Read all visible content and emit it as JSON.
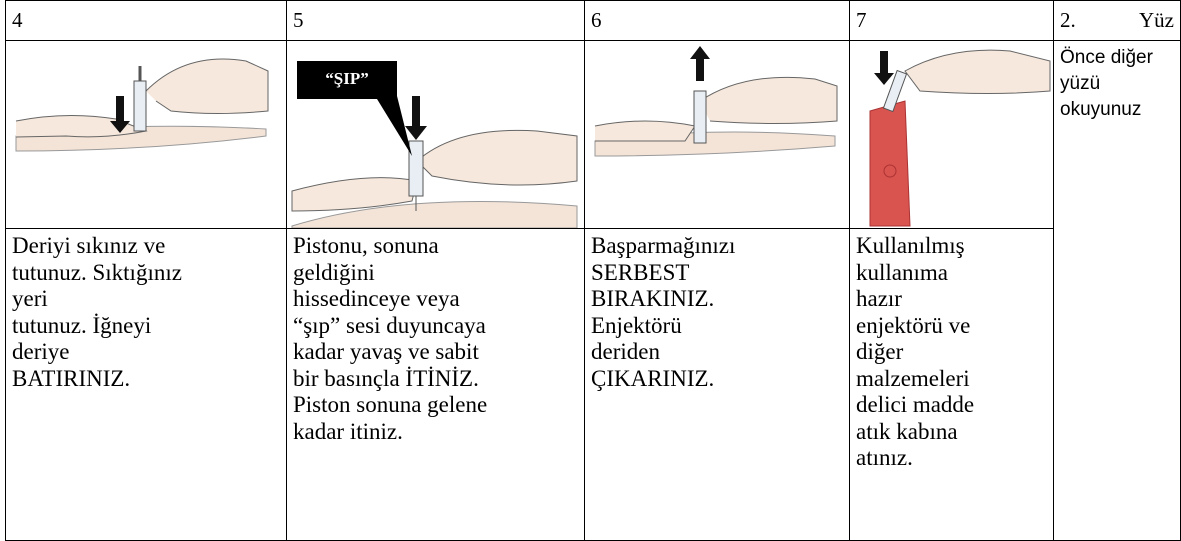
{
  "table": {
    "header": [
      "4",
      "5",
      "6",
      "7"
    ],
    "side_header": {
      "number": "2.",
      "label": "Yüz"
    },
    "image_label": "“ŞIP”",
    "instructions": [
      [
        "Deriyi sıkınız ve",
        "tutunuz. Sıktığınız",
        "yeri",
        "tutunuz. İğneyi",
        "deriye",
        "BATIRINIZ."
      ],
      [
        "Pistonu, sonuna",
        "geldiğini",
        "hissedinceye veya",
        "“şıp” sesi duyuncaya",
        "kadar yavaş ve sabit",
        "bir basınçla İTİNİZ.",
        "Piston sonuna gelene",
        "kadar itiniz."
      ],
      [
        "Başparmağınızı",
        "SERBEST",
        "BIRAKINIZ.",
        "Enjektörü",
        "deriden",
        "ÇIKARINIZ."
      ],
      [
        "Kullanılmış",
        "kullanıma",
        "hazır",
        "enjektörü ve",
        "diğer",
        "malzemeleri",
        "delici madde",
        "atık kabına",
        "atınız."
      ]
    ],
    "side_note": [
      "Önce diğer",
      "yüzü",
      "okuyunuz"
    ]
  }
}
